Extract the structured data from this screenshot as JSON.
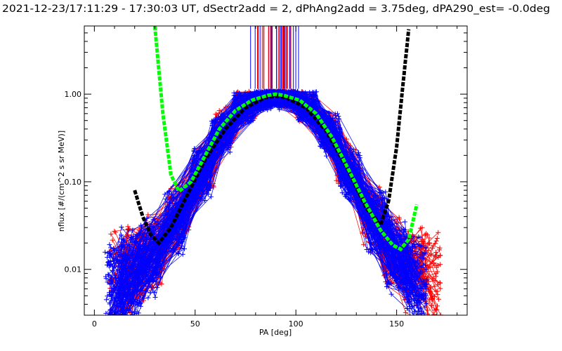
{
  "chart_data": {
    "type": "scatter",
    "title": "2021-12-23/17:11:29 - 17:30:03 UT, dSectr2add = 2, dPhAng2add = 3.75deg, dPA290_est=  -0.0deg",
    "xlabel": "PA [deg]",
    "ylabel": "nflux [#/(cm^2 s sr MeV)]",
    "xlim": [
      -5,
      185
    ],
    "ylim": [
      0.003,
      6
    ],
    "yscale": "log",
    "grid": false,
    "x_ticks": [
      0,
      50,
      100,
      150
    ],
    "y_ticks": [
      0.01,
      0.1,
      1.0
    ],
    "x_tick_labels": [
      "0",
      "50",
      "100",
      "150"
    ],
    "y_tick_labels": [
      "0.01",
      "0.10",
      "1.00"
    ],
    "colors": {
      "red": "#ff0000",
      "blue": "#0000ff",
      "green_fit": "#00ff00",
      "black_fit": "#000000",
      "axes": "#000000"
    },
    "series": [
      {
        "color": "red",
        "marker": "plus",
        "n_traces": 90,
        "representative_trace": {
          "x": [
            12,
            20,
            30,
            42,
            55,
            65,
            75,
            85,
            90,
            95,
            105,
            115,
            125,
            138,
            148,
            158,
            167
          ],
          "y": [
            0.008,
            0.01,
            0.015,
            0.04,
            0.15,
            0.4,
            0.75,
            0.95,
            1.0,
            0.95,
            0.75,
            0.4,
            0.15,
            0.04,
            0.015,
            0.01,
            0.008
          ]
        }
      },
      {
        "color": "blue",
        "marker": "plus",
        "n_traces": 150,
        "representative_trace": {
          "x": [
            10,
            18,
            28,
            40,
            53,
            63,
            74,
            84,
            90,
            96,
            106,
            117,
            127,
            140,
            150,
            160
          ],
          "y": [
            0.006,
            0.009,
            0.014,
            0.035,
            0.12,
            0.35,
            0.7,
            0.9,
            0.95,
            0.9,
            0.7,
            0.35,
            0.12,
            0.035,
            0.014,
            0.008
          ]
        }
      },
      {
        "color": "green_fit",
        "style": "thick-dashed",
        "x": [
          30,
          34,
          38,
          42,
          48,
          55,
          62,
          70,
          78,
          86,
          90,
          94,
          102,
          110,
          118,
          126,
          134,
          142,
          148,
          152,
          156,
          160
        ],
        "y": [
          6.0,
          0.6,
          0.12,
          0.078,
          0.1,
          0.2,
          0.4,
          0.65,
          0.85,
          0.97,
          1.0,
          0.97,
          0.85,
          0.6,
          0.32,
          0.14,
          0.06,
          0.028,
          0.019,
          0.017,
          0.022,
          0.055
        ]
      },
      {
        "color": "black_fit",
        "style": "thick-dashed",
        "x": [
          20,
          24,
          28,
          32,
          38,
          46,
          55,
          65,
          75,
          85,
          90,
          95,
          105,
          115,
          125,
          135,
          142,
          146,
          150,
          153,
          156
        ],
        "y": [
          0.08,
          0.04,
          0.025,
          0.02,
          0.03,
          0.07,
          0.18,
          0.4,
          0.7,
          0.92,
          0.95,
          0.92,
          0.7,
          0.38,
          0.15,
          0.05,
          0.032,
          0.06,
          0.25,
          1.2,
          5.5
        ]
      }
    ],
    "spikes": {
      "x_range": [
        77,
        102
      ],
      "y_from": 1.15,
      "y_to": 6.0,
      "count": 40
    }
  }
}
